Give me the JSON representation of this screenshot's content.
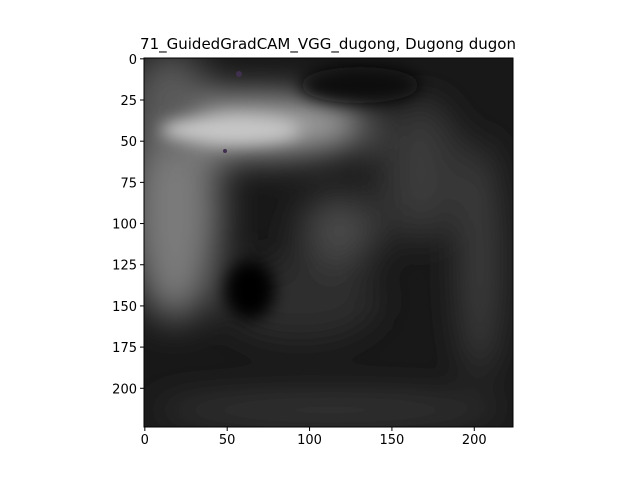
{
  "chart_data": {
    "type": "image",
    "title": "71_GuidedGradCAM_VGG_dugong, Dugong dugon",
    "xlim": [
      -0.5,
      223.5
    ],
    "xticks": [
      0,
      50,
      100,
      150,
      200
    ],
    "ylim": [
      223.5,
      -0.5
    ],
    "yticks": [
      0,
      25,
      50,
      75,
      100,
      125,
      150,
      175,
      200
    ]
  }
}
